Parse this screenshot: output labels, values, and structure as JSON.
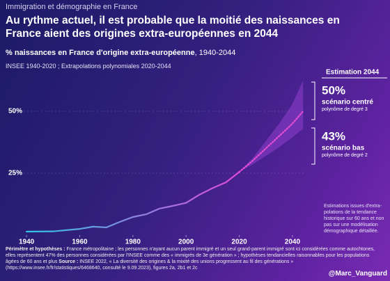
{
  "header": {
    "kicker": "Immigration et démographie en France",
    "title_line1": "Au rythme actuel, il est probable que la moitié des naissances en",
    "title_line2": "France aient des origines extra-européennes en 2044",
    "subtitle_bold": "% naissances en France d'origine extra-européenne",
    "subtitle_rest": ", 1940-2044",
    "source": "INSEE 1940-2020 ; Extrapolations polynomiales 2020-2044"
  },
  "chart_data": {
    "type": "line",
    "xlim": [
      1935,
      2045
    ],
    "xticks": [
      1940,
      1960,
      1980,
      2000,
      2020,
      2040
    ],
    "ylim": [
      0,
      65
    ],
    "yticks": [
      {
        "value": 25,
        "label": "25%"
      },
      {
        "value": 50,
        "label": "50%"
      }
    ],
    "grid": true,
    "series": [
      {
        "color": "#2ec4e6",
        "color_end": "#e04ad6",
        "style": "solid",
        "x": [
          1940,
          1950,
          1955,
          1960,
          1965,
          1970,
          1975,
          1980,
          1985,
          1990,
          1995,
          2000,
          2005,
          2010,
          2015,
          2020
        ],
        "values": [
          1.4,
          1.5,
          2,
          2.5,
          3.4,
          3.1,
          5.3,
          7.3,
          8.4,
          10.7,
          11.8,
          13,
          16.3,
          19,
          21.3,
          25.5
        ]
      },
      {
        "color": "#ea4ed8",
        "style": "dotted",
        "x": [
          2020,
          2025,
          2030,
          2035,
          2040,
          2044
        ],
        "values": [
          25.5,
          30,
          35,
          40,
          45,
          50
        ]
      }
    ],
    "band": {
      "color": "#8a3cc8",
      "x": [
        2020,
        2025,
        2030,
        2035,
        2040,
        2044
      ],
      "upper": [
        25.5,
        31,
        38,
        45,
        53,
        62.5
      ],
      "lower": [
        25.5,
        28.5,
        32,
        35.5,
        39.5,
        43
      ]
    },
    "annotations": {
      "estimation_title": "Estimation 2044",
      "central_value": "50%",
      "central_label": "scénario centré",
      "central_method": "polynôme de degré 3",
      "low_value": "43%",
      "low_label": "scénario bas",
      "low_method": "polynôme de degré 2",
      "note": "Estimations issues d'extra-polations de la tendance historique sur 60 ans et non pas sur une modélisation démographique détaillée."
    }
  },
  "footer": {
    "scope_label": "Périmètre et hypothèses :",
    "scope_text": " France métropolitaine ; les personnes n'ayant aucun parent immigré et un seul grand-parent immigré sont ici considérées comme autochtones, elles représentent 47% des personnes considérées par l'INSEE comme des « immigrés de 3e génération » ; hypothèses tendancielles raisonnables pour les populations âgées de 60 ans et plus ",
    "source_label": "Source :",
    "source_text": " INSEE 2022, « La diversité des origines & la mixité des unions progressent au fil des générations » (https://www.insee.fr/fr/statistiques/6468640, consulté le 9.09.2023), figures 2a, 2b1 et 2c",
    "credit": "@Marc_Vanguard"
  }
}
